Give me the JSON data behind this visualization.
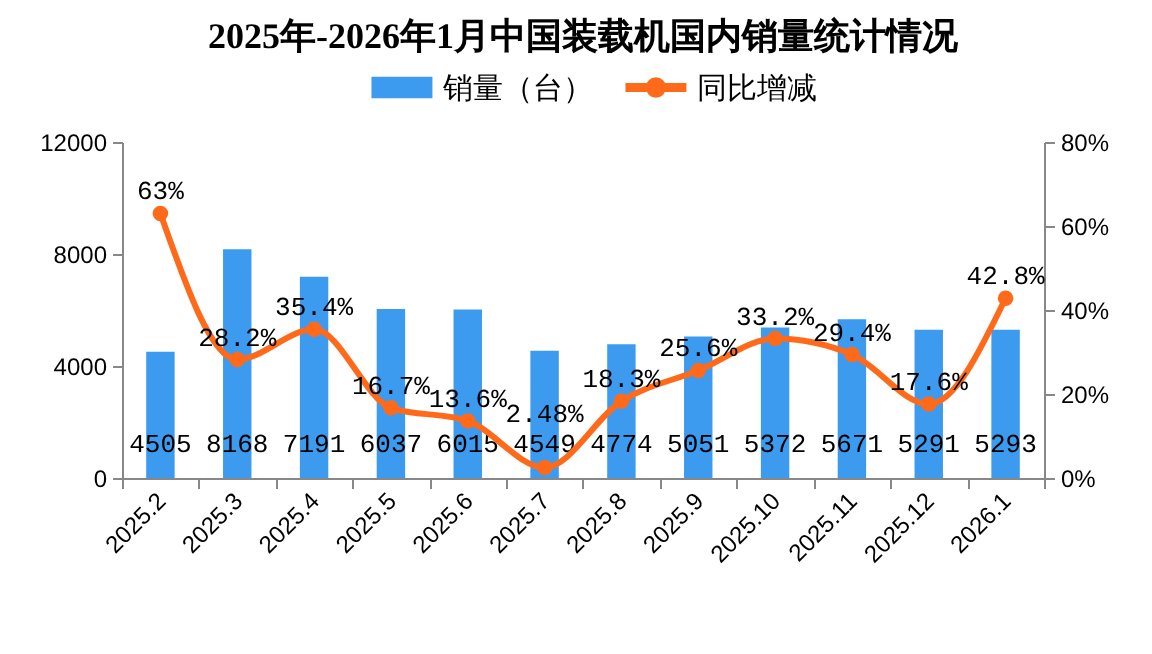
{
  "chart_data": {
    "type": "bar",
    "title": "2025年-2026年1月中国装载机国内销量统计情况",
    "categories": [
      "2025.2",
      "2025.3",
      "2025.4",
      "2025.5",
      "2025.6",
      "2025.7",
      "2025.8",
      "2025.9",
      "2025.10",
      "2025.11",
      "2025.12",
      "2026.1"
    ],
    "series": [
      {
        "name": "销量（台）",
        "color": "#3d9bef",
        "values": [
          4505,
          8168,
          7191,
          6037,
          6015,
          4549,
          4774,
          5051,
          5372,
          5671,
          5291,
          5293
        ],
        "value_labels": [
          "4505",
          "8168",
          "7191",
          "6037",
          "6015",
          "4549",
          "4774",
          "5051",
          "5372",
          "5671",
          "5291",
          "5293"
        ]
      },
      {
        "name": "同比增减",
        "type": "line",
        "axis": "y2",
        "color": "#ff6a1a",
        "values": [
          63,
          28.2,
          35.4,
          16.7,
          13.6,
          2.48,
          18.3,
          25.6,
          33.2,
          29.4,
          17.6,
          42.8
        ],
        "value_labels": [
          "63%",
          "28.2%",
          "35.4%",
          "16.7%",
          "13.6%",
          "2.48%",
          "18.3%",
          "25.6%",
          "33.2%",
          "29.4%",
          "17.6%",
          "42.8%"
        ]
      }
    ],
    "ylim": [
      0,
      12000
    ],
    "yticks": [
      0,
      4000,
      8000,
      12000
    ],
    "y2lim": [
      0,
      80
    ],
    "y2ticks": [
      {
        "value": 0,
        "label": "0%"
      },
      {
        "value": 20,
        "label": "20%"
      },
      {
        "value": 40,
        "label": "40%"
      },
      {
        "value": 60,
        "label": "60%"
      },
      {
        "value": 80,
        "label": "80%"
      }
    ],
    "grid": false,
    "legend": "top",
    "marker": "circle",
    "line_style": "solid"
  }
}
